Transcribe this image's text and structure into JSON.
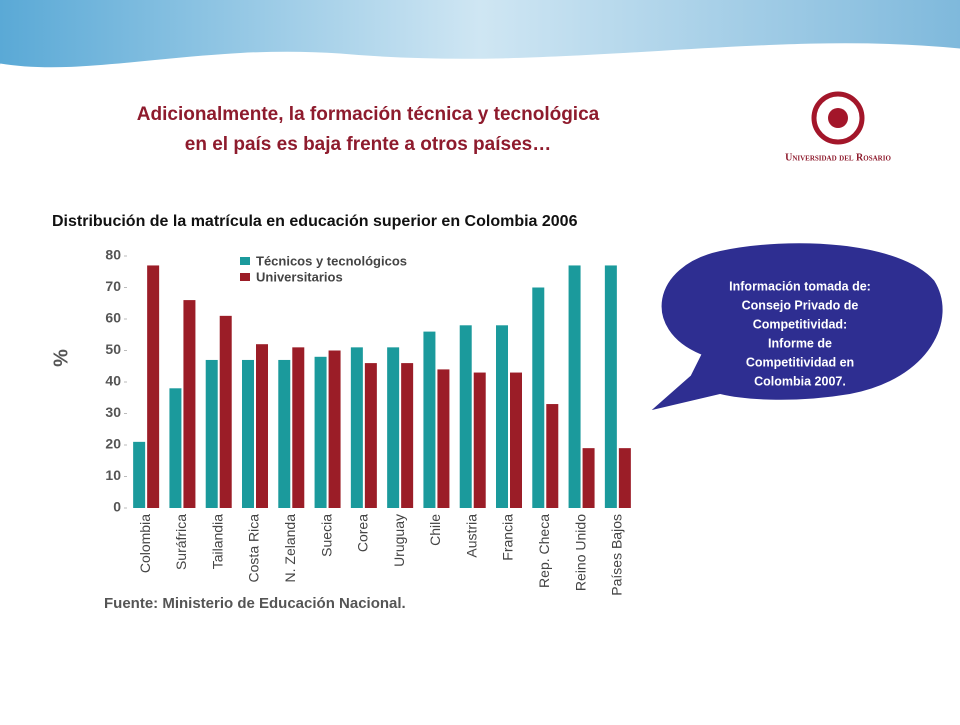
{
  "header": {
    "title_lines": [
      "Adicionalmente, la formación técnica y tecnológica",
      "en el país es baja frente a otros países…"
    ]
  },
  "logo": {
    "text": "Universidad del Rosario"
  },
  "callout": {
    "lines": [
      "Información tomada de:",
      "Consejo Privado de",
      "Competitividad:",
      "Informe de",
      "Competitividad en",
      "Colombia 2007."
    ]
  },
  "chart_data": {
    "type": "bar",
    "title": "Distribución de la matrícula en educación superior en Colombia 2006",
    "ylabel": "%",
    "source": "Fuente: Ministerio de Educación Nacional.",
    "categories": [
      "Colombia",
      "Suráfrica",
      "Tailandia",
      "Costa Rica",
      "N. Zelanda",
      "Suecia",
      "Corea",
      "Uruguay",
      "Chile",
      "Austria",
      "Francia",
      "Rep. Checa",
      "Reino Unido",
      "Países Bajos"
    ],
    "series": [
      {
        "name": "Técnicos y tecnológicos",
        "color": "#1b9a9c",
        "values": [
          21,
          38,
          47,
          47,
          47,
          48,
          51,
          51,
          56,
          58,
          58,
          70,
          77,
          77
        ]
      },
      {
        "name": "Universitarios",
        "color": "#9b1d27",
        "values": [
          77,
          66,
          61,
          52,
          51,
          50,
          46,
          46,
          44,
          43,
          43,
          33,
          19,
          19
        ]
      }
    ],
    "ylim": [
      0,
      80
    ],
    "yticks": [
      0,
      10,
      20,
      30,
      40,
      50,
      60,
      70,
      80
    ],
    "grid": false
  }
}
